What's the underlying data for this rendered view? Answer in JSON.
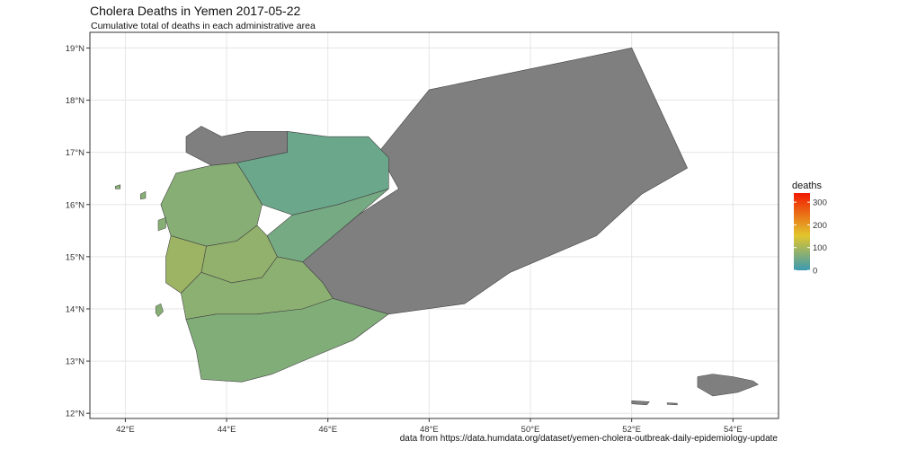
{
  "title": "Cholera Deaths in Yemen 2017-05-22",
  "subtitle": "Cumulative total of deaths in each administrative area",
  "caption": "data from https://data.humdata.org/dataset/yemen-cholera-outbreak-daily-epidemiology-update",
  "colors": {
    "no_data": "#7f7f7f",
    "scale_low": "#3a9ab2",
    "scale_mid": "#e2c62d",
    "scale_high": "#f21a00"
  },
  "chart_data": {
    "type": "map",
    "x_axis": {
      "range": [
        41.3,
        54.9
      ],
      "ticks": [
        42,
        44,
        46,
        48,
        50,
        52,
        54
      ],
      "tick_labels": [
        "42°E",
        "44°E",
        "46°E",
        "48°E",
        "50°E",
        "52°E",
        "54°E"
      ]
    },
    "y_axis": {
      "range": [
        11.9,
        19.3
      ],
      "ticks": [
        12,
        13,
        14,
        15,
        16,
        17,
        18,
        19
      ],
      "tick_labels": [
        "12°N",
        "13°N",
        "14°N",
        "15°N",
        "16°N",
        "17°N",
        "18°N",
        "19°N"
      ]
    },
    "grid": true,
    "legend": {
      "title": "deaths",
      "position": "right",
      "limits": [
        0,
        340
      ],
      "ticks": [
        0,
        100,
        200,
        300
      ],
      "tick_labels": [
        "0",
        "100",
        "200",
        "300"
      ]
    },
    "regions": [
      {
        "value": null,
        "points": [
          [
            48.0,
            18.2
          ],
          [
            52.0,
            19.0
          ],
          [
            53.1,
            16.7
          ],
          [
            52.2,
            16.2
          ],
          [
            51.3,
            15.4
          ],
          [
            49.6,
            14.7
          ],
          [
            48.7,
            14.1
          ],
          [
            47.2,
            13.9
          ],
          [
            46.1,
            14.2
          ],
          [
            45.9,
            14.5
          ],
          [
            45.5,
            14.9
          ],
          [
            46.6,
            15.8
          ],
          [
            47.4,
            16.3
          ],
          [
            47.0,
            17.0
          ]
        ]
      },
      {
        "value": null,
        "points": [
          [
            43.2,
            17.0
          ],
          [
            43.2,
            17.3
          ],
          [
            43.5,
            17.5
          ],
          [
            43.9,
            17.3
          ],
          [
            44.4,
            17.4
          ],
          [
            45.2,
            17.4
          ],
          [
            45.2,
            17.0
          ],
          [
            44.2,
            16.8
          ],
          [
            43.7,
            16.75
          ]
        ]
      },
      {
        "value": 45,
        "points": [
          [
            44.2,
            16.8
          ],
          [
            45.2,
            17.0
          ],
          [
            45.2,
            17.4
          ],
          [
            46.0,
            17.3
          ],
          [
            46.8,
            17.3
          ],
          [
            47.2,
            16.9
          ],
          [
            47.2,
            16.3
          ],
          [
            46.2,
            16.0
          ],
          [
            45.3,
            15.8
          ],
          [
            44.7,
            16.0
          ],
          [
            44.4,
            16.5
          ]
        ]
      },
      {
        "value": 55,
        "points": [
          [
            45.3,
            15.8
          ],
          [
            46.2,
            16.0
          ],
          [
            47.2,
            16.3
          ],
          [
            46.6,
            15.8
          ],
          [
            45.5,
            14.9
          ],
          [
            45.0,
            15.0
          ],
          [
            44.8,
            15.4
          ]
        ]
      },
      {
        "value": 70,
        "points": [
          [
            43.0,
            16.6
          ],
          [
            43.7,
            16.75
          ],
          [
            44.2,
            16.8
          ],
          [
            44.4,
            16.5
          ],
          [
            44.7,
            16.0
          ],
          [
            44.6,
            15.6
          ],
          [
            44.2,
            15.3
          ],
          [
            43.6,
            15.2
          ],
          [
            42.9,
            15.4
          ],
          [
            42.7,
            16.0
          ]
        ]
      },
      {
        "value": 80,
        "points": [
          [
            43.6,
            15.2
          ],
          [
            44.2,
            15.3
          ],
          [
            44.6,
            15.6
          ],
          [
            44.8,
            15.4
          ],
          [
            45.0,
            15.0
          ],
          [
            44.7,
            14.6
          ],
          [
            44.1,
            14.5
          ],
          [
            43.5,
            14.7
          ]
        ]
      },
      {
        "value": 90,
        "points": [
          [
            42.9,
            15.4
          ],
          [
            43.6,
            15.2
          ],
          [
            43.5,
            14.7
          ],
          [
            43.1,
            14.3
          ],
          [
            42.8,
            14.5
          ],
          [
            42.8,
            15.0
          ]
        ]
      },
      {
        "value": 75,
        "points": [
          [
            43.1,
            14.3
          ],
          [
            43.5,
            14.7
          ],
          [
            44.1,
            14.5
          ],
          [
            44.7,
            14.6
          ],
          [
            45.0,
            15.0
          ],
          [
            45.5,
            14.9
          ],
          [
            45.9,
            14.5
          ],
          [
            46.1,
            14.2
          ],
          [
            45.5,
            14.0
          ],
          [
            44.6,
            13.9
          ],
          [
            43.8,
            13.9
          ],
          [
            43.2,
            13.8
          ]
        ]
      },
      {
        "value": 65,
        "points": [
          [
            43.2,
            13.8
          ],
          [
            43.8,
            13.9
          ],
          [
            44.6,
            13.9
          ],
          [
            45.5,
            14.0
          ],
          [
            46.1,
            14.2
          ],
          [
            47.2,
            13.9
          ],
          [
            46.5,
            13.4
          ],
          [
            45.5,
            13.0
          ],
          [
            44.9,
            12.75
          ],
          [
            44.3,
            12.6
          ],
          [
            43.5,
            12.65
          ],
          [
            43.4,
            13.2
          ]
        ]
      }
    ],
    "islands": [
      {
        "value": null,
        "points": [
          [
            53.3,
            12.7
          ],
          [
            53.6,
            12.75
          ],
          [
            54.0,
            12.7
          ],
          [
            54.4,
            12.62
          ],
          [
            54.5,
            12.55
          ],
          [
            54.1,
            12.4
          ],
          [
            53.6,
            12.33
          ],
          [
            53.3,
            12.5
          ]
        ]
      },
      {
        "value": null,
        "points": [
          [
            52.0,
            12.24
          ],
          [
            52.35,
            12.22
          ],
          [
            52.3,
            12.16
          ],
          [
            52.0,
            12.18
          ]
        ]
      },
      {
        "value": null,
        "points": [
          [
            52.7,
            12.2
          ],
          [
            52.9,
            12.19
          ],
          [
            52.9,
            12.16
          ],
          [
            52.7,
            12.17
          ]
        ]
      },
      {
        "value": 70,
        "points": [
          [
            42.6,
            14.05
          ],
          [
            42.7,
            14.1
          ],
          [
            42.75,
            13.95
          ],
          [
            42.65,
            13.85
          ],
          [
            42.6,
            13.92
          ]
        ]
      },
      {
        "value": 70,
        "points": [
          [
            42.65,
            15.7
          ],
          [
            42.8,
            15.75
          ],
          [
            42.8,
            15.55
          ],
          [
            42.65,
            15.5
          ]
        ]
      },
      {
        "value": 70,
        "points": [
          [
            42.3,
            16.2
          ],
          [
            42.4,
            16.25
          ],
          [
            42.4,
            16.12
          ],
          [
            42.3,
            16.1
          ]
        ]
      },
      {
        "value": 70,
        "points": [
          [
            41.8,
            16.35
          ],
          [
            41.9,
            16.38
          ],
          [
            41.9,
            16.3
          ],
          [
            41.8,
            16.3
          ]
        ]
      }
    ]
  }
}
